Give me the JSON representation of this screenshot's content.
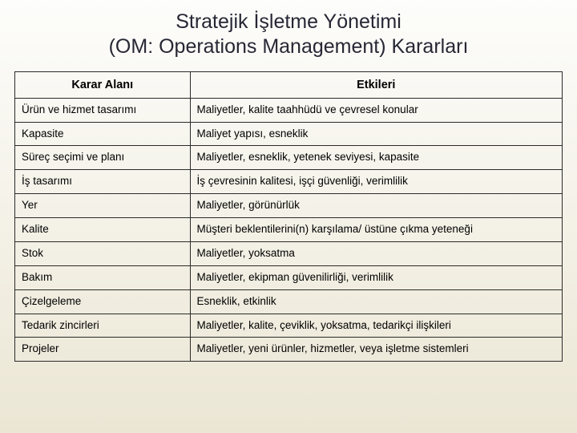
{
  "title_line1": "Stratejik İşletme Yönetimi",
  "title_line2": "(OM: Operations Management) Kararları",
  "columns": [
    "Karar Alanı",
    "Etkileri"
  ],
  "rows": [
    [
      "Ürün ve hizmet tasarımı",
      "Maliyetler, kalite taahhüdü ve çevresel konular"
    ],
    [
      "Kapasite",
      "Maliyet yapısı, esneklik"
    ],
    [
      "Süreç seçimi ve planı",
      "Maliyetler, esneklik, yetenek seviyesi, kapasite"
    ],
    [
      "İş tasarımı",
      "İş çevresinin kalitesi, işçi güvenliği, verimlilik"
    ],
    [
      "Yer",
      "Maliyetler, görünürlük"
    ],
    [
      "Kalite",
      "Müşteri beklentilerini(n) karşılama/ üstüne çıkma yeteneği"
    ],
    [
      "Stok",
      "Maliyetler, yoksatma"
    ],
    [
      "Bakım",
      "Maliyetler, ekipman güvenilirliği, verimlilik"
    ],
    [
      "Çizelgeleme",
      "Esneklik, etkinlik"
    ],
    [
      "Tedarik zincirleri",
      "Maliyetler, kalite, çeviklik, yoksatma, tedarikçi ilişkileri"
    ],
    [
      "Projeler",
      "Maliyetler, yeni ürünler, hizmetler, veya işletme sistemleri"
    ]
  ],
  "style": {
    "type": "table",
    "slide_bg_top": "#fdfdfb",
    "slide_bg_bottom": "#ebe6d4",
    "title_color": "#272735",
    "title_fontsize_pt": 19,
    "header_fontsize_pt": 11,
    "body_fontsize_pt": 10,
    "border_color": "#2a2a2a",
    "col_widths_pct": [
      32,
      68
    ],
    "font_family": "Verdana"
  }
}
